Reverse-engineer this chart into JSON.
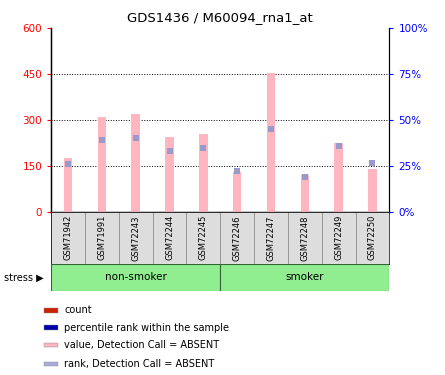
{
  "title": "GDS1436 / M60094_rna1_at",
  "samples": [
    "GSM71942",
    "GSM71991",
    "GSM72243",
    "GSM72244",
    "GSM72245",
    "GSM72246",
    "GSM72247",
    "GSM72248",
    "GSM72249",
    "GSM72250"
  ],
  "bar_values": [
    175,
    310,
    320,
    245,
    255,
    130,
    455,
    120,
    225,
    140
  ],
  "rank_values": [
    155,
    235,
    240,
    200,
    210,
    135,
    270,
    115,
    215,
    160
  ],
  "ylim_left": [
    0,
    600
  ],
  "ylim_right": [
    0,
    1.0
  ],
  "yticks_left": [
    0,
    150,
    300,
    450,
    600
  ],
  "ytick_labels_left": [
    "0",
    "150",
    "300",
    "450",
    "600"
  ],
  "yticks_right": [
    0,
    0.25,
    0.5,
    0.75,
    1.0
  ],
  "ytick_labels_right": [
    "0%",
    "25%",
    "50%",
    "75%",
    "100%"
  ],
  "bar_color_absent": "#FFB6C1",
  "rank_color_absent": "#9999CC",
  "legend_items": [
    {
      "label": "count",
      "color": "#CC2200"
    },
    {
      "label": "percentile rank within the sample",
      "color": "#0000AA"
    },
    {
      "label": "value, Detection Call = ABSENT",
      "color": "#FFB6C1"
    },
    {
      "label": "rank, Detection Call = ABSENT",
      "color": "#AAAADD"
    }
  ],
  "bar_width": 0.25,
  "marker_size": 5,
  "group_color": "#90EE90",
  "group_color_dark": "#55CC55",
  "label_bg_color": "#DDDDDD"
}
